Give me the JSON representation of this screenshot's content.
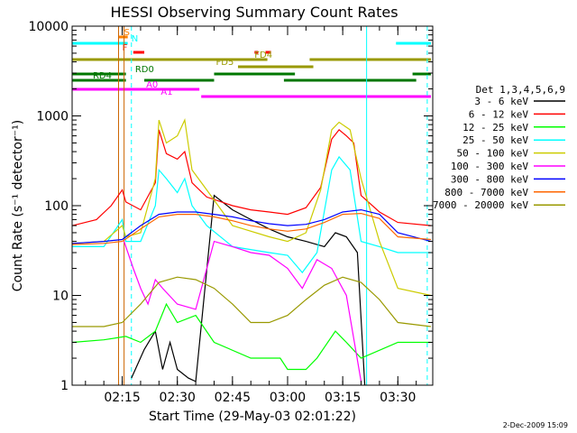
{
  "chart_data": {
    "type": "line",
    "title": "HESSI Observing Summary Count Rates",
    "xlabel": "Start Time (29-May-03 02:01:22)",
    "ylabel": "Count Rate (s⁻¹ detector⁻¹)",
    "x_scale": "time",
    "y_scale": "log",
    "xlim": [
      "02:01:22",
      "03:39:30"
    ],
    "ylim": [
      1,
      10000
    ],
    "x_ticks": [
      "02:15",
      "02:30",
      "02:45",
      "03:00",
      "03:15",
      "03:30"
    ],
    "y_ticks": [
      "1",
      "10",
      "100",
      "1000",
      "10000"
    ],
    "grid": false,
    "legend_placement": "right",
    "legend_title": "Det 1,3,4,5,6,9",
    "footer_date": "2-Dec-2009 15:09",
    "series": [
      {
        "name": "3 - 6 keV",
        "color": "#000000",
        "points": [
          [
            "02:17:30",
            1.2
          ],
          [
            "02:21:00",
            2.5
          ],
          [
            "02:24:00",
            4
          ],
          [
            "02:26:00",
            1.5
          ],
          [
            "02:28:00",
            3
          ],
          [
            "02:30:00",
            1.5
          ],
          [
            "02:33:00",
            1.2
          ],
          [
            "02:35:00",
            1.1
          ],
          [
            "02:40:00",
            130
          ],
          [
            "02:45:00",
            90
          ],
          [
            "02:50:00",
            70
          ],
          [
            "02:55:00",
            55
          ],
          [
            "03:00:00",
            45
          ],
          [
            "03:05:00",
            40
          ],
          [
            "03:10:00",
            35
          ],
          [
            "03:13:00",
            50
          ],
          [
            "03:16:00",
            45
          ],
          [
            "03:19:00",
            30
          ],
          [
            "03:21:00",
            1
          ]
        ]
      },
      {
        "name": "6 - 12 keV",
        "color": "#ff0000",
        "points": [
          [
            "02:01:30",
            60
          ],
          [
            "02:08:00",
            70
          ],
          [
            "02:12:00",
            100
          ],
          [
            "02:15:00",
            150
          ],
          [
            "02:16:00",
            110
          ],
          [
            "02:20:00",
            90
          ],
          [
            "02:24:00",
            180
          ],
          [
            "02:25:00",
            700
          ],
          [
            "02:27:00",
            380
          ],
          [
            "02:30:00",
            330
          ],
          [
            "02:32:00",
            400
          ],
          [
            "02:34:00",
            180
          ],
          [
            "02:38:00",
            125
          ],
          [
            "02:45:00",
            100
          ],
          [
            "02:50:00",
            90
          ],
          [
            "02:55:00",
            85
          ],
          [
            "03:00:00",
            80
          ],
          [
            "03:05:00",
            95
          ],
          [
            "03:09:00",
            160
          ],
          [
            "03:12:00",
            550
          ],
          [
            "03:14:00",
            700
          ],
          [
            "03:16:00",
            600
          ],
          [
            "03:18:00",
            500
          ],
          [
            "03:20:00",
            130
          ],
          [
            "03:25:00",
            85
          ],
          [
            "03:30:00",
            65
          ],
          [
            "03:39:00",
            60
          ]
        ]
      },
      {
        "name": "12 - 25 keV",
        "color": "#00ff00",
        "points": [
          [
            "02:01:30",
            3
          ],
          [
            "02:10:00",
            3.2
          ],
          [
            "02:16:00",
            3.5
          ],
          [
            "02:20:00",
            3
          ],
          [
            "02:24:00",
            4
          ],
          [
            "02:27:00",
            8
          ],
          [
            "02:30:00",
            5
          ],
          [
            "02:35:00",
            6
          ],
          [
            "02:40:00",
            3
          ],
          [
            "02:50:00",
            2
          ],
          [
            "02:58:00",
            2
          ],
          [
            "03:00:00",
            1.5
          ],
          [
            "03:05:00",
            1.5
          ],
          [
            "03:08:00",
            2
          ],
          [
            "03:13:00",
            4
          ],
          [
            "03:16:00",
            3
          ],
          [
            "03:20:00",
            2
          ],
          [
            "03:30:00",
            3
          ],
          [
            "03:39:00",
            3
          ]
        ]
      },
      {
        "name": "25 - 50 keV",
        "color": "#00ffff",
        "points": [
          [
            "02:01:30",
            35
          ],
          [
            "02:10:00",
            35
          ],
          [
            "02:15:00",
            70
          ],
          [
            "02:16:00",
            40
          ],
          [
            "02:20:00",
            40
          ],
          [
            "02:24:00",
            100
          ],
          [
            "02:25:00",
            250
          ],
          [
            "02:27:00",
            200
          ],
          [
            "02:30:00",
            140
          ],
          [
            "02:32:00",
            200
          ],
          [
            "02:34:00",
            100
          ],
          [
            "02:38:00",
            60
          ],
          [
            "02:45:00",
            35
          ],
          [
            "02:55:00",
            30
          ],
          [
            "03:00:00",
            28
          ],
          [
            "03:04:00",
            18
          ],
          [
            "03:08:00",
            30
          ],
          [
            "03:12:00",
            250
          ],
          [
            "03:14:00",
            350
          ],
          [
            "03:17:00",
            250
          ],
          [
            "03:20:00",
            40
          ],
          [
            "03:25:00",
            35
          ],
          [
            "03:30:00",
            30
          ],
          [
            "03:39:00",
            30
          ]
        ]
      },
      {
        "name": "50 - 100 keV",
        "color": "#cccc00",
        "points": [
          [
            "02:01:30",
            38
          ],
          [
            "02:10:00",
            40
          ],
          [
            "02:15:00",
            60
          ],
          [
            "02:16:00",
            45
          ],
          [
            "02:20:00",
            50
          ],
          [
            "02:24:00",
            200
          ],
          [
            "02:25:00",
            900
          ],
          [
            "02:27:00",
            500
          ],
          [
            "02:30:00",
            600
          ],
          [
            "02:32:00",
            900
          ],
          [
            "02:34:00",
            250
          ],
          [
            "02:38:00",
            150
          ],
          [
            "02:45:00",
            60
          ],
          [
            "02:55:00",
            45
          ],
          [
            "03:00:00",
            40
          ],
          [
            "03:05:00",
            50
          ],
          [
            "03:09:00",
            150
          ],
          [
            "03:12:00",
            700
          ],
          [
            "03:14:00",
            850
          ],
          [
            "03:17:00",
            700
          ],
          [
            "03:20:00",
            200
          ],
          [
            "03:25:00",
            40
          ],
          [
            "03:30:00",
            12
          ],
          [
            "03:39:00",
            10
          ]
        ]
      },
      {
        "name": "100 - 300 keV",
        "color": "#ff00ff",
        "points": [
          [
            "02:15:30",
            40
          ],
          [
            "02:18:00",
            20
          ],
          [
            "02:20:00",
            12
          ],
          [
            "02:22:00",
            8
          ],
          [
            "02:24:00",
            15
          ],
          [
            "02:26:00",
            12
          ],
          [
            "02:30:00",
            8
          ],
          [
            "02:35:00",
            7
          ],
          [
            "02:40:00",
            40
          ],
          [
            "02:45:00",
            35
          ],
          [
            "02:50:00",
            30
          ],
          [
            "02:55:00",
            28
          ],
          [
            "03:00:00",
            20
          ],
          [
            "03:04:00",
            12
          ],
          [
            "03:08:00",
            25
          ],
          [
            "03:12:00",
            20
          ],
          [
            "03:16:00",
            10
          ],
          [
            "03:20:00",
            1.1
          ]
        ]
      },
      {
        "name": "300 - 800 keV",
        "color": "#0000ff",
        "points": [
          [
            "02:01:30",
            38
          ],
          [
            "02:10:00",
            40
          ],
          [
            "02:15:00",
            42
          ],
          [
            "02:20:00",
            60
          ],
          [
            "02:25:00",
            80
          ],
          [
            "02:30:00",
            85
          ],
          [
            "02:35:00",
            85
          ],
          [
            "02:40:00",
            80
          ],
          [
            "02:45:00",
            75
          ],
          [
            "02:50:00",
            68
          ],
          [
            "02:55:00",
            63
          ],
          [
            "03:00:00",
            60
          ],
          [
            "03:05:00",
            62
          ],
          [
            "03:10:00",
            70
          ],
          [
            "03:15:00",
            85
          ],
          [
            "03:20:00",
            90
          ],
          [
            "03:25:00",
            80
          ],
          [
            "03:30:00",
            50
          ],
          [
            "03:39:00",
            40
          ]
        ]
      },
      {
        "name": "800 - 7000 keV",
        "color": "#ff6600",
        "points": [
          [
            "02:01:30",
            37
          ],
          [
            "02:10:00",
            38
          ],
          [
            "02:15:00",
            40
          ],
          [
            "02:20:00",
            55
          ],
          [
            "02:25:00",
            75
          ],
          [
            "02:30:00",
            80
          ],
          [
            "02:35:00",
            80
          ],
          [
            "02:40:00",
            75
          ],
          [
            "02:45:00",
            68
          ],
          [
            "02:50:00",
            60
          ],
          [
            "02:55:00",
            55
          ],
          [
            "03:00:00",
            52
          ],
          [
            "03:05:00",
            55
          ],
          [
            "03:10:00",
            65
          ],
          [
            "03:15:00",
            80
          ],
          [
            "03:20:00",
            82
          ],
          [
            "03:25:00",
            72
          ],
          [
            "03:30:00",
            45
          ],
          [
            "03:39:00",
            42
          ]
        ]
      },
      {
        "name": "7000 - 20000 keV",
        "color": "#999900",
        "points": [
          [
            "02:01:30",
            4.5
          ],
          [
            "02:10:00",
            4.5
          ],
          [
            "02:15:00",
            5
          ],
          [
            "02:20:00",
            8
          ],
          [
            "02:25:00",
            14
          ],
          [
            "02:30:00",
            16
          ],
          [
            "02:35:00",
            15
          ],
          [
            "02:40:00",
            12
          ],
          [
            "02:45:00",
            8
          ],
          [
            "02:50:00",
            5
          ],
          [
            "02:55:00",
            5
          ],
          [
            "03:00:00",
            6
          ],
          [
            "03:05:00",
            9
          ],
          [
            "03:10:00",
            13
          ],
          [
            "03:15:00",
            16
          ],
          [
            "03:20:00",
            14
          ],
          [
            "03:25:00",
            9
          ],
          [
            "03:30:00",
            5
          ],
          [
            "03:39:00",
            4.5
          ]
        ]
      }
    ],
    "state_bars": [
      {
        "label": "S",
        "color": "#ff8000",
        "label_start": "02:15:30",
        "segments": [
          [
            "02:14:00",
            "02:16:30"
          ]
        ]
      },
      {
        "label": "N",
        "color": "#00ffff",
        "label_start": "02:17:30",
        "segments": [
          [
            "02:01:30",
            "02:16:30"
          ],
          [
            "03:29:30",
            "03:39:00"
          ]
        ]
      },
      {
        "label": "F",
        "color": "#ff0000",
        "label_start": "02:15:00",
        "segments": [
          [
            "02:18:00",
            "02:21:00"
          ],
          [
            "02:51:00",
            "02:52:00"
          ],
          [
            "02:54:00",
            "02:55:30"
          ]
        ]
      },
      {
        "label": "FD4",
        "color": "#999900",
        "label_start": "02:51:00",
        "segments": [
          [
            "02:01:30",
            "02:54:30"
          ],
          [
            "03:06:00",
            "03:39:00"
          ]
        ]
      },
      {
        "label": "FD5",
        "color": "#999900",
        "label_start": "02:40:30",
        "segments": [
          [
            "02:46:30",
            "03:07:00"
          ]
        ]
      },
      {
        "label": "RD0",
        "color": "#007700",
        "label_start": "02:18:30",
        "segments": [
          [
            "02:01:30",
            "02:16:00"
          ],
          [
            "02:40:00",
            "03:02:00"
          ],
          [
            "03:34:00",
            "03:39:00"
          ]
        ]
      },
      {
        "label": "RD4",
        "color": "#007700",
        "label_start": "02:07:00",
        "segments": [
          [
            "02:01:30",
            "02:16:00"
          ],
          [
            "02:21:00",
            "02:40:00"
          ],
          [
            "02:59:00",
            "03:35:00"
          ]
        ]
      },
      {
        "label": "A0",
        "color": "#ff00ff",
        "label_start": "02:21:30",
        "segments": [
          [
            "02:01:30",
            "02:36:00"
          ]
        ]
      },
      {
        "label": "A1",
        "color": "#ff00ff",
        "label_start": "02:25:30",
        "segments": [
          [
            "02:36:30",
            "03:39:00"
          ]
        ]
      }
    ],
    "markers": [
      {
        "time": "02:14:00",
        "color": "#cc6600",
        "style": "solid"
      },
      {
        "time": "02:15:30",
        "color": "#cc6600",
        "style": "solid"
      },
      {
        "time": "02:17:30",
        "color": "#00ffff",
        "style": "dashed"
      },
      {
        "time": "03:21:30",
        "color": "#00ffff",
        "style": "solid"
      },
      {
        "time": "03:38:00",
        "color": "#00ffff",
        "style": "dashed"
      }
    ]
  }
}
